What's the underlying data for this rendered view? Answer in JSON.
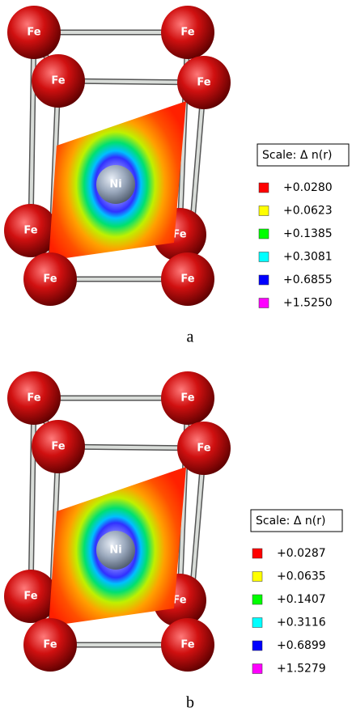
{
  "panels": [
    {
      "label": "a",
      "scale_title": "Scale:  Δ n(r)",
      "atoms": [
        "Fe",
        "Fe",
        "Fe",
        "Fe",
        "Fe",
        "Fe",
        "Fe",
        "Fe",
        "Ni"
      ],
      "legend": [
        {
          "color": "#ff0000",
          "label": "+0.0280"
        },
        {
          "color": "#ffff00",
          "label": "+0.0623"
        },
        {
          "color": "#00ff00",
          "label": "+0.1385"
        },
        {
          "color": "#00ffff",
          "label": "+0.3081"
        },
        {
          "color": "#0000ff",
          "label": "+0.6855"
        },
        {
          "color": "#ff00ff",
          "label": "+1.5250"
        }
      ]
    },
    {
      "label": "b",
      "scale_title": "Scale:  Δ n(r)",
      "atoms": [
        "Fe",
        "Fe",
        "Fe",
        "Fe",
        "Fe",
        "Fe",
        "Fe",
        "Fe",
        "Ni"
      ],
      "legend": [
        {
          "color": "#ff0000",
          "label": "+0.0287"
        },
        {
          "color": "#ffff00",
          "label": "+0.0635"
        },
        {
          "color": "#00ff00",
          "label": "+0.1407"
        },
        {
          "color": "#00ffff",
          "label": "+0.3116"
        },
        {
          "color": "#0000ff",
          "label": "+0.6899"
        },
        {
          "color": "#ff00ff",
          "label": "+1.5279"
        }
      ]
    }
  ]
}
